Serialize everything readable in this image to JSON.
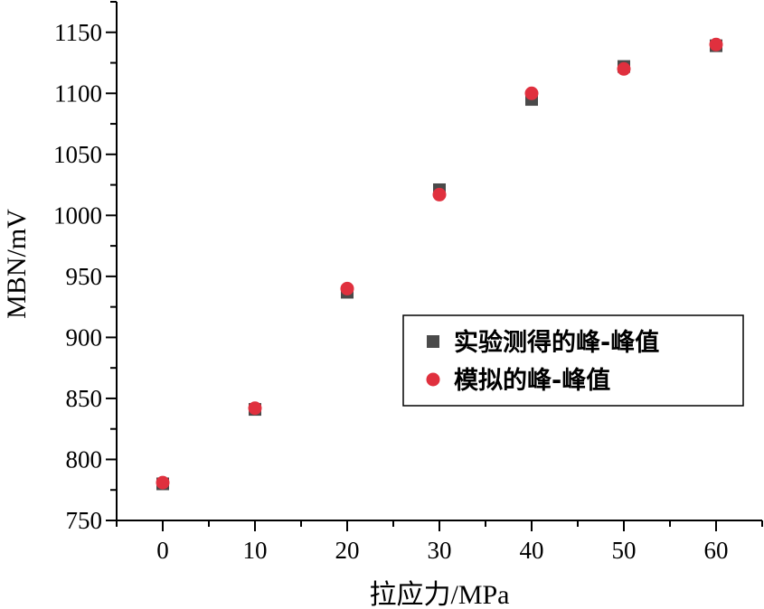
{
  "chart_data": {
    "type": "scatter",
    "title": "",
    "xlabel": "拉应力/MPa",
    "ylabel": "MBN/mV",
    "xlim": [
      -5,
      65
    ],
    "ylim": [
      750,
      1175
    ],
    "xticks": [
      0,
      10,
      20,
      30,
      40,
      50,
      60
    ],
    "yticks": [
      750,
      800,
      850,
      900,
      950,
      1000,
      1050,
      1100,
      1150
    ],
    "grid": false,
    "legend_position": "center-right",
    "series": [
      {
        "name": "实验测得的峰-峰值",
        "marker": "square",
        "color": "#4a4a4a",
        "x": [
          0,
          10,
          20,
          30,
          40,
          50,
          60
        ],
        "y": [
          780,
          841,
          937,
          1021,
          1095,
          1122,
          1139
        ]
      },
      {
        "name": "模拟的峰-峰值",
        "marker": "circle",
        "color": "#e0303e",
        "x": [
          0,
          10,
          20,
          30,
          40,
          50,
          60
        ],
        "y": [
          781,
          842,
          940,
          1017,
          1100,
          1120,
          1140
        ]
      }
    ]
  }
}
